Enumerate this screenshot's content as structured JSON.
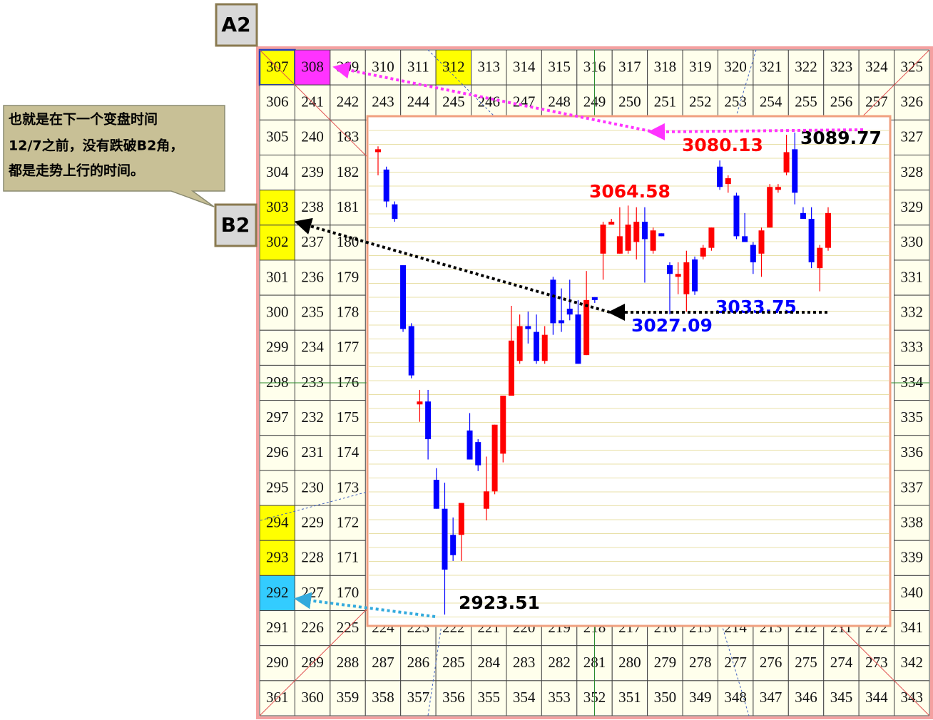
{
  "chart_data": {
    "type": "candlestick",
    "ylim": [
      2919.6,
      3095.4
    ],
    "up_color": "#ff0000",
    "down_color": "#0000ff",
    "open": [
      3083,
      3077,
      3065,
      3044,
      3023,
      2996,
      2997,
      2970,
      2960,
      2951,
      2951,
      2987,
      2983,
      2960,
      2966,
      2979,
      2999,
      3011,
      3023,
      3021,
      3011,
      3039,
      3025,
      3029,
      3027,
      3013,
      3033,
      3048,
      3058,
      3048,
      3049,
      3052,
      3059,
      3049,
      3055,
      3044,
      3040,
      3034,
      3046,
      3047,
      3050,
      3078,
      3072,
      3068,
      3054,
      3051,
      3048,
      3057,
      3070,
      3076,
      3084,
      3062,
      3060,
      3043,
      3050
    ],
    "high": [
      3085,
      3078,
      3066,
      3044,
      3024,
      3001,
      3001,
      2974,
      2969,
      2957,
      2962,
      2993,
      2984,
      2978,
      2989,
      2999,
      3030,
      3027,
      3028,
      3027,
      3023,
      3040,
      3036,
      3039,
      3032,
      3042,
      3033,
      3059,
      3060,
      3064,
      3064.58,
      3064,
      3064,
      3057,
      3055,
      3045,
      3045,
      3049,
      3047,
      3051,
      3057,
      3080.13,
      3075,
      3069,
      3062,
      3052,
      3057,
      3072,
      3072,
      3089,
      3089.77,
      3064,
      3064,
      3051,
      3064
    ],
    "low": [
      3075,
      3064,
      3059,
      3021,
      3005,
      2990,
      2977,
      2960,
      2923.51,
      2942,
      2942,
      2977,
      2973,
      2956,
      2965,
      2976,
      2999,
      3010,
      3017,
      3010,
      3010,
      3020,
      3021,
      3025,
      3010,
      3013,
      3031,
      3039,
      3058,
      3048,
      3048,
      3046,
      3038,
      3048,
      3054,
      3027.09,
      3034,
      3028,
      3033.75,
      3046,
      3049,
      3070,
      3069,
      3053,
      3052,
      3041,
      3040,
      3057,
      3069,
      3075,
      3065,
      3060,
      3043,
      3035,
      3049
    ],
    "close": [
      3084,
      3066,
      3060,
      3022,
      3006,
      2997,
      2984,
      2960,
      2939,
      2944,
      2962,
      2977,
      2975,
      2966,
      2989,
      2999,
      3018,
      3023,
      3022,
      3011,
      3020,
      3024,
      3024,
      3027,
      3010,
      3032,
      3032,
      3058,
      3059,
      3054,
      3058,
      3059,
      3053,
      3056,
      3054,
      3041,
      3041,
      3045,
      3035,
      3050,
      3057,
      3071,
      3074,
      3054,
      3052,
      3045,
      3056,
      3071,
      3071,
      3083,
      3069,
      3060,
      3045,
      3050,
      3062
    ]
  },
  "annotations": [
    {
      "text": "3089.77",
      "color": "#000000"
    },
    {
      "text": "3080.13",
      "color": "#ff0000"
    },
    {
      "text": "3064.58",
      "color": "#ff0000"
    },
    {
      "text": "3033.75",
      "color": "#0000ff"
    },
    {
      "text": "3027.09",
      "color": "#0000ff"
    },
    {
      "text": "2923.51",
      "color": "#000000"
    }
  ],
  "labels": {
    "a2": "A2",
    "b2": "B2"
  },
  "callout": [
    "也就是在下一个变盘时间",
    "12/7之前，没有跌破B2角，",
    "都是走势上行的时间。"
  ],
  "gann_square": {
    "rows": [
      [
        307,
        308,
        309,
        310,
        311,
        312,
        313,
        314,
        315,
        316,
        317,
        318,
        319,
        320,
        321,
        322,
        323,
        324,
        325
      ],
      [
        306,
        241,
        242,
        243,
        244,
        245,
        246,
        247,
        248,
        249,
        250,
        251,
        252,
        253,
        254,
        255,
        256,
        257,
        326
      ],
      [
        305,
        240,
        183,
        null,
        null,
        null,
        null,
        null,
        null,
        null,
        null,
        null,
        null,
        null,
        null,
        null,
        null,
        null,
        327
      ],
      [
        304,
        239,
        182,
        null,
        null,
        null,
        null,
        null,
        null,
        null,
        null,
        null,
        null,
        null,
        null,
        null,
        null,
        null,
        328
      ],
      [
        303,
        238,
        181,
        null,
        null,
        null,
        null,
        null,
        null,
        null,
        null,
        null,
        null,
        null,
        null,
        null,
        null,
        null,
        329
      ],
      [
        302,
        237,
        180,
        null,
        null,
        null,
        null,
        null,
        null,
        null,
        null,
        null,
        null,
        null,
        null,
        null,
        null,
        null,
        330
      ],
      [
        301,
        236,
        179,
        null,
        null,
        null,
        null,
        null,
        null,
        null,
        null,
        null,
        null,
        null,
        null,
        null,
        null,
        null,
        331
      ],
      [
        300,
        235,
        178,
        null,
        null,
        null,
        null,
        null,
        null,
        null,
        null,
        null,
        null,
        null,
        null,
        null,
        null,
        null,
        332
      ],
      [
        299,
        234,
        177,
        null,
        null,
        null,
        null,
        null,
        null,
        null,
        null,
        null,
        null,
        null,
        null,
        null,
        null,
        null,
        333
      ],
      [
        298,
        233,
        176,
        null,
        null,
        null,
        null,
        null,
        null,
        null,
        null,
        null,
        null,
        null,
        null,
        null,
        null,
        null,
        334
      ],
      [
        297,
        232,
        175,
        null,
        null,
        null,
        null,
        null,
        null,
        null,
        null,
        null,
        null,
        null,
        null,
        null,
        null,
        null,
        335
      ],
      [
        296,
        231,
        174,
        null,
        null,
        null,
        null,
        null,
        null,
        null,
        null,
        null,
        null,
        null,
        null,
        null,
        null,
        null,
        336
      ],
      [
        295,
        230,
        173,
        null,
        null,
        null,
        null,
        null,
        null,
        null,
        null,
        null,
        null,
        null,
        null,
        null,
        null,
        null,
        337
      ],
      [
        294,
        229,
        172,
        null,
        null,
        null,
        null,
        null,
        null,
        null,
        null,
        null,
        null,
        null,
        null,
        null,
        null,
        null,
        338
      ],
      [
        293,
        228,
        171,
        null,
        null,
        null,
        null,
        null,
        null,
        null,
        null,
        null,
        null,
        null,
        null,
        null,
        null,
        null,
        339
      ],
      [
        292,
        227,
        170,
        null,
        null,
        null,
        null,
        null,
        null,
        null,
        null,
        null,
        null,
        null,
        null,
        null,
        null,
        null,
        340
      ],
      [
        291,
        226,
        225,
        224,
        223,
        222,
        221,
        220,
        219,
        218,
        217,
        216,
        215,
        214,
        213,
        212,
        211,
        272,
        341
      ],
      [
        290,
        289,
        288,
        287,
        286,
        285,
        284,
        283,
        282,
        281,
        280,
        279,
        278,
        277,
        276,
        275,
        274,
        273,
        342
      ],
      [
        361,
        360,
        359,
        358,
        357,
        356,
        355,
        354,
        353,
        352,
        351,
        350,
        349,
        348,
        347,
        346,
        345,
        344,
        343
      ]
    ]
  }
}
